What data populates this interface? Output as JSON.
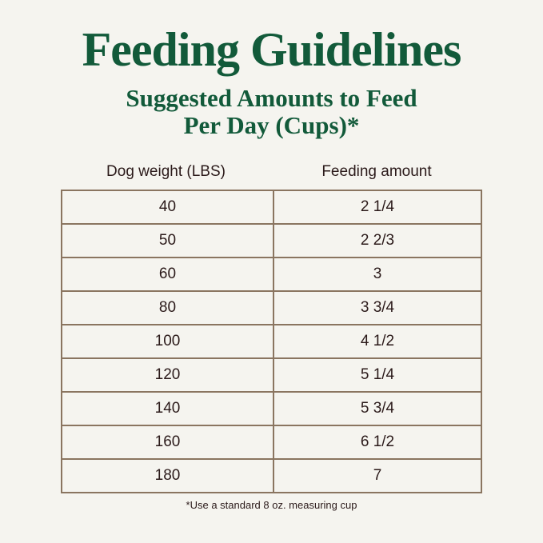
{
  "title": "Feeding Guidelines",
  "subtitle_line1": "Suggested Amounts to Feed",
  "subtitle_line2": "Per Day (Cups)*",
  "table": {
    "headers": [
      "Dog weight (LBS)",
      "Feeding amount"
    ],
    "rows": [
      [
        "40",
        "2 1/4"
      ],
      [
        "50",
        "2 2/3"
      ],
      [
        "60",
        "3"
      ],
      [
        "80",
        "3 3/4"
      ],
      [
        "100",
        "4 1/2"
      ],
      [
        "120",
        "5 1/4"
      ],
      [
        "140",
        "5 3/4"
      ],
      [
        "160",
        "6 1/2"
      ],
      [
        "180",
        "7"
      ]
    ]
  },
  "footnote": "*Use a standard 8 oz. measuring cup",
  "colors": {
    "heading": "#125a3a",
    "text": "#2b1a1a",
    "border": "#8a7560",
    "background": "#f5f4ef"
  }
}
